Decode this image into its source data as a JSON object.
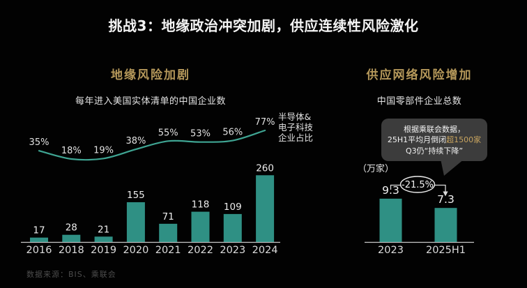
{
  "slide": {
    "title": "挑战3：地缘政治冲突加剧，供应连续性风险激化",
    "footer": "数据来源：BIS、乘联会",
    "colors": {
      "background": "#020202",
      "teal_bar": "#2f9084",
      "teal_line": "#3fa593",
      "gold": "#b5985a",
      "bubble_bg": "#3c3c3c",
      "bubble_gold": "#c8a45f",
      "axis": "#c9c9c9",
      "text_white": "#ececec"
    }
  },
  "left_section": {
    "header": "地缘风险加剧",
    "subtitle": "每年进入美国实体清单的中国企业数",
    "line_label": [
      "半导体&",
      "电子科技",
      "企业占比"
    ]
  },
  "right_section": {
    "header": "供应网络风险增加",
    "subtitle": "中国零部件企业总数",
    "unit_label": "（万家）",
    "change_badge": "-21.5%",
    "tooltip": {
      "line1": "根据乘联会数据，",
      "line2_prefix": "25H1平均月倒闭",
      "line2_highlight": "超1500家",
      "line3": "Q3仍“持续下降”"
    }
  },
  "chart_data": [
    {
      "type": "bar",
      "title": "每年进入美国实体清单的中国企业数",
      "categories": [
        "2016",
        "2018",
        "2019",
        "2020",
        "2021",
        "2022",
        "2023",
        "2024"
      ],
      "series": [
        {
          "name": "进入美国实体清单的中国企业数",
          "type": "bar",
          "values": [
            17,
            28,
            21,
            155,
            71,
            118,
            109,
            260
          ]
        },
        {
          "name": "半导体&电子科技企业占比",
          "type": "line",
          "unit": "%",
          "values": [
            35,
            18,
            19,
            38,
            55,
            53,
            56,
            77
          ]
        }
      ],
      "ylim": [
        0,
        280
      ],
      "grid": false,
      "legend_position": "right-of-line"
    },
    {
      "type": "bar",
      "title": "中国零部件企业总数",
      "categories": [
        "2023",
        "2025H1"
      ],
      "values": [
        9.3,
        7.3
      ],
      "ylabel": "万家",
      "ylim": [
        0,
        10
      ],
      "grid": false,
      "annotation": "-21.5%"
    }
  ]
}
